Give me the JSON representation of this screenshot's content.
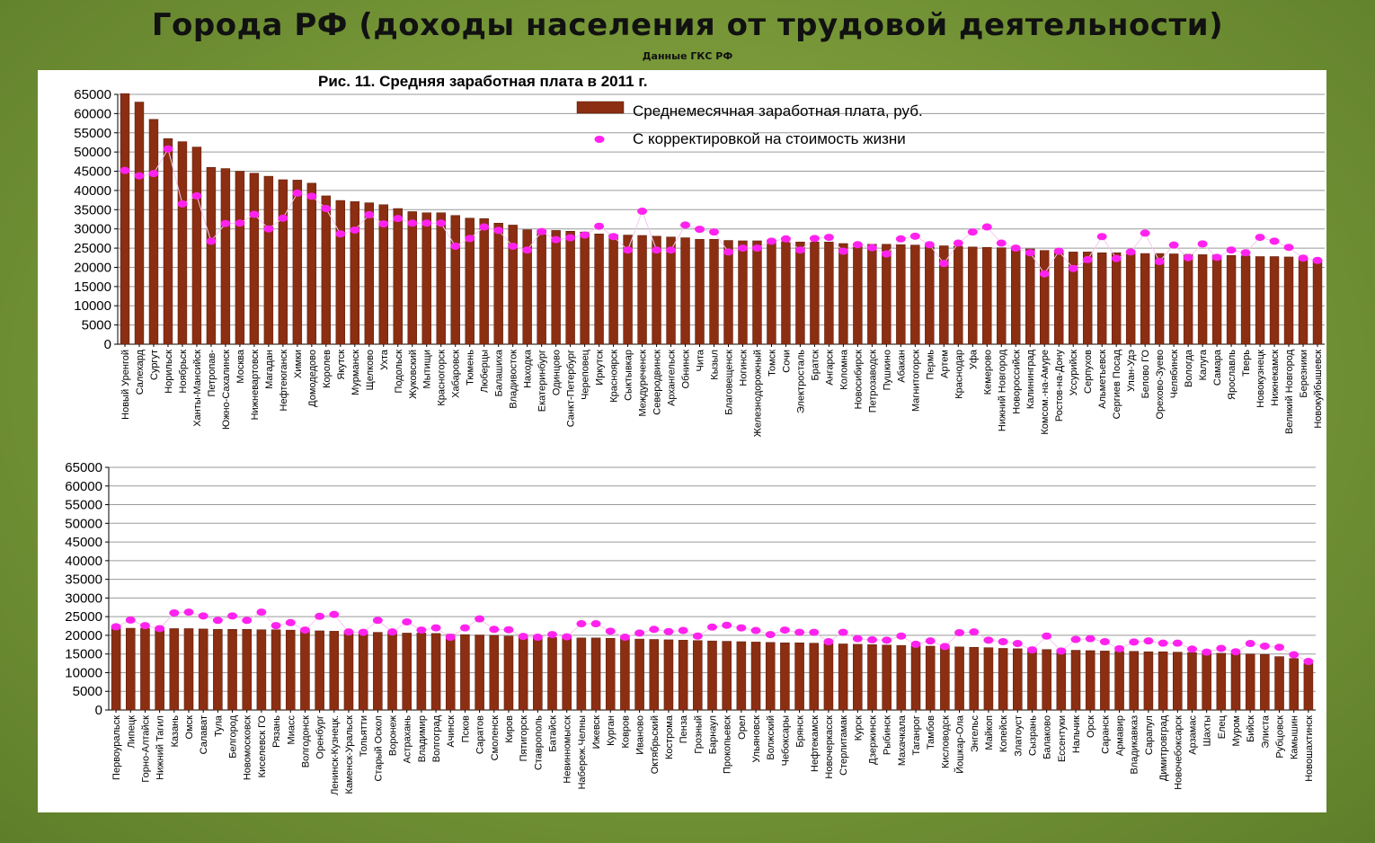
{
  "slide": {
    "title": "Города РФ (доходы населения от трудовой деятельности)",
    "subtitle": "Данные ГКС РФ"
  },
  "colors": {
    "bar": "#8b2e12",
    "bar_edge": "#5a1a08",
    "dot": "#ff22ee",
    "grid": "#9a9a9a",
    "background": "#7a9a3a"
  },
  "chart_data": [
    {
      "type": "bar",
      "title": "Рис. 11. Средняя заработная плата в 2011 г.",
      "legend": [
        "Среднемесячная  заработная плата, руб.",
        "С корректировкой на стоимость жизни"
      ],
      "legend_position": "top-right",
      "ylim": [
        0,
        65000
      ],
      "yticks": [
        0,
        5000,
        10000,
        15000,
        20000,
        25000,
        30000,
        35000,
        40000,
        45000,
        50000,
        55000,
        60000,
        65000
      ],
      "grid": true,
      "categories": [
        "Новый Уренгой",
        "Салехард",
        "Сургут",
        "Норильск",
        "Ноябрьск",
        "Ханты-Мансийск",
        "Петропав-",
        "Южно-Сахалинск",
        "Москва",
        "Нижневартовск",
        "Магадан",
        "Нефтеюганск",
        "Химки",
        "Домодедово",
        "Королев",
        "Якутск",
        "Мурманск",
        "Щелково",
        "Ухта",
        "Подольск",
        "Жуковский",
        "Мытищи",
        "Красногорск",
        "Хабаровск",
        "Тюмень",
        "Люберцы",
        "Балашиха",
        "Владивосток",
        "Находка",
        "Екатеринбург",
        "Одинцово",
        "Санкт-Петербург",
        "Череповец",
        "Иркутск",
        "Красноярск",
        "Сыктывкар",
        "Междуреченск",
        "Северодвинск",
        "Архангельск",
        "Обнинск",
        "Чита",
        "Кызыл",
        "Благовещенск",
        "Ногинск",
        "Железнодорожный",
        "Томск",
        "Сочи",
        "Электросталь",
        "Братск",
        "Ангарск",
        "Коломна",
        "Новосибирск",
        "Петрозаводск",
        "Пушкино",
        "Абакан",
        "Магнитогорск",
        "Пермь",
        "Артем",
        "Краснодар",
        "Уфа",
        "Кемерово",
        "Нижний Новгород",
        "Новороссийск",
        "Калининград",
        "Комсом.-на-Амуре",
        "Ростов-на-Дону",
        "Уссурийск",
        "Серпухов",
        "Альметьевск",
        "Сергиев Посад",
        "Улан-Удэ",
        "Белово ГО",
        "Орехово-Зуево",
        "Челябинск",
        "Вологда",
        "Калуга",
        "Самара",
        "Ярославль",
        "Тверь",
        "Новокузнецк",
        "Нижнекамск",
        "Великий Новгород",
        "Березники",
        "Новокуйбышевск"
      ],
      "series": [
        {
          "name": "Среднемесячная  заработная плата, руб.",
          "values": [
            65200,
            63000,
            58500,
            53500,
            52700,
            51300,
            46000,
            45700,
            45000,
            44500,
            43700,
            42800,
            42700,
            41900,
            38600,
            37400,
            37100,
            36800,
            36300,
            35300,
            34500,
            34200,
            34200,
            33500,
            32800,
            32700,
            31500,
            31000,
            29800,
            29700,
            29600,
            29400,
            29200,
            28700,
            28500,
            28400,
            28300,
            28100,
            27900,
            27700,
            27300,
            27300,
            27000,
            26900,
            26900,
            26800,
            26700,
            26600,
            26600,
            26600,
            26200,
            26100,
            26000,
            26000,
            25900,
            25800,
            25700,
            25600,
            25500,
            25300,
            25200,
            25100,
            25000,
            24800,
            24400,
            24200,
            24000,
            24000,
            23800,
            23800,
            23700,
            23600,
            23600,
            23500,
            23400,
            23300,
            23200,
            23100,
            23000,
            22800,
            22800,
            22700,
            22500,
            22000
          ]
        },
        {
          "name": "С корректировкой на стоимость жизни",
          "values": [
            45200,
            43800,
            44400,
            50800,
            36500,
            38600,
            26800,
            31400,
            31500,
            33800,
            30000,
            32800,
            39300,
            38500,
            35300,
            28700,
            29700,
            33700,
            31300,
            32700,
            31500,
            31500,
            31500,
            25500,
            27500,
            30500,
            29600,
            25500,
            24500,
            29300,
            27200,
            27700,
            28400,
            30700,
            28000,
            24500,
            34600,
            24500,
            24500,
            31000,
            29900,
            29200,
            24000,
            25000,
            25000,
            26800,
            27400,
            24500,
            27500,
            27800,
            24200,
            25900,
            25100,
            23500,
            27400,
            28100,
            25900,
            21000,
            26300,
            29200,
            30500,
            26300,
            25000,
            23800,
            18300,
            24200,
            19700,
            22000,
            28000,
            22300,
            24000,
            28900,
            21500,
            25800,
            22500,
            26100,
            22600,
            24500,
            23800,
            27800,
            26800,
            25200,
            22400,
            21800
          ]
        }
      ]
    },
    {
      "type": "bar",
      "title": "",
      "legend": [],
      "ylim": [
        0,
        65000
      ],
      "yticks": [
        0,
        5000,
        10000,
        15000,
        20000,
        25000,
        30000,
        35000,
        40000,
        45000,
        50000,
        55000,
        60000,
        65000
      ],
      "grid": true,
      "categories": [
        "Первоуральск",
        "Липецк",
        "Горно-Алтайск",
        "Нижний Тагил",
        "Казань",
        "Омск",
        "Салават",
        "Тула",
        "Белгород",
        "Новомосковск",
        "Киселевск ГО",
        "Рязань",
        "Миасс",
        "Волгодонск",
        "Оренбург",
        "Ленинск-Кузнецк.",
        "Каменск-Уральск",
        "Тольятти",
        "Старый Оскол",
        "Воронеж",
        "Астрахань",
        "Владимир",
        "Волгоград",
        "Ачинск",
        "Псков",
        "Саратов",
        "Смоленск",
        "Киров",
        "Пятигорск",
        "Ставрополь",
        "Батайск",
        "Невинномысск",
        "Набереж.Челны",
        "Ижевск",
        "Курган",
        "Ковров",
        "Иваново",
        "Октябрьский",
        "Кострома",
        "Пенза",
        "Грозный",
        "Барнаул",
        "Прокопьевск",
        "Орел",
        "Ульяновск",
        "Волжский",
        "Чебоксары",
        "Брянск",
        "Нефтекамск",
        "Новочеркасск",
        "Стерлитамак",
        "Курск",
        "Дзержинск",
        "Рыбинск",
        "Махачкала",
        "Таганрог",
        "Тамбов",
        "Кисловодск",
        "Йошкар-Ола",
        "Энгельс",
        "Майкоп",
        "Копейск",
        "Златоуст",
        "Сызрань",
        "Балаково",
        "Ессентуки",
        "Нальчик",
        "Орск",
        "Саранск",
        "Армавир",
        "Владикавказ",
        "Сарапул",
        "Димитровград",
        "Новочебоксарск",
        "Арзамас",
        "Шахты",
        "Елец",
        "Муром",
        "Бийск",
        "Элиста",
        "Рубцовск",
        "Камышин",
        "Новошахтинск"
      ],
      "series": [
        {
          "name": "Среднемесячная  заработная плата, руб.",
          "values": [
            22000,
            21900,
            21900,
            21800,
            21800,
            21800,
            21700,
            21600,
            21600,
            21600,
            21500,
            21500,
            21400,
            21300,
            21200,
            21100,
            21000,
            20900,
            20800,
            20700,
            20600,
            20600,
            20500,
            20300,
            20200,
            20100,
            20000,
            19800,
            19600,
            19500,
            19400,
            19400,
            19300,
            19300,
            19200,
            19100,
            19000,
            18900,
            18800,
            18700,
            18600,
            18500,
            18400,
            18300,
            18200,
            18100,
            18000,
            18000,
            17900,
            17800,
            17700,
            17600,
            17500,
            17400,
            17300,
            17200,
            17100,
            17000,
            16900,
            16800,
            16700,
            16500,
            16400,
            16300,
            16200,
            16100,
            16000,
            15900,
            15800,
            15700,
            15700,
            15600,
            15600,
            15500,
            15400,
            15300,
            15200,
            15100,
            15000,
            14900,
            14300,
            13800,
            12500
          ]
        },
        {
          "name": "С корректировкой на стоимость жизни",
          "values": [
            22300,
            24100,
            22600,
            21800,
            26000,
            26200,
            25200,
            24000,
            25200,
            24000,
            26200,
            22600,
            23400,
            21400,
            25100,
            25600,
            20900,
            20800,
            24000,
            20900,
            23600,
            21400,
            22000,
            19500,
            22000,
            24400,
            21600,
            21500,
            19700,
            19500,
            20200,
            19600,
            23100,
            23100,
            21100,
            19500,
            20600,
            21600,
            21000,
            21300,
            19800,
            22200,
            22700,
            22000,
            21300,
            20200,
            21400,
            20800,
            20800,
            18300,
            20800,
            19100,
            18800,
            18700,
            19800,
            17600,
            18500,
            17000,
            20700,
            20900,
            18700,
            18300,
            17800,
            16100,
            19800,
            15800,
            18900,
            19100,
            18300,
            16400,
            18200,
            18500,
            17900,
            17900,
            16300,
            15500,
            16500,
            15600,
            17800,
            17100,
            16800,
            14800,
            13000
          ]
        }
      ]
    }
  ]
}
